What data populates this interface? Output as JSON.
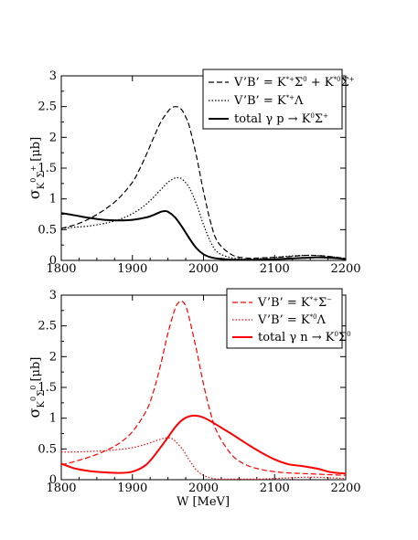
{
  "chart_data": [
    {
      "type": "line",
      "ylabel": {
        "main": "σ",
        "sub1": "K",
        "sup1": "0",
        "sub2": "Σ",
        "sup2": "+",
        "unit": " [μb]"
      },
      "xlabel": "",
      "xlim": [
        1800,
        2200
      ],
      "ylim": [
        0,
        3
      ],
      "xticks": [
        "1800",
        "1900",
        "2000",
        "2100",
        "2200"
      ],
      "yticks": [
        "0",
        "0.5",
        "1",
        "1.5",
        "2",
        "2.5",
        "3"
      ],
      "legend_position": "top-right",
      "legend_labels": {
        "s1": {
          "a": "V’B’ = K",
          "b": "*+",
          "c": "Σ",
          "d": "0",
          "e": " + K",
          "f": "*0",
          "g": "Σ",
          "h": "+"
        },
        "s2": {
          "a": "V’B’ = K",
          "b": "*+",
          "c": "Λ"
        },
        "s3": {
          "a": "total γ p → K",
          "b": "0",
          "c": "Σ",
          "d": "+"
        }
      },
      "color": "#000000",
      "series": [
        {
          "name": "V'B' = K*+Σ0 + K*0Σ+",
          "style": "dashed",
          "x": [
            1800,
            1820,
            1840,
            1860,
            1880,
            1900,
            1910,
            1920,
            1930,
            1940,
            1950,
            1955,
            1960,
            1965,
            1970,
            1975,
            1980,
            1990,
            2000,
            2010,
            2020,
            2040,
            2060,
            2080,
            2100,
            2120,
            2140,
            2160,
            2180,
            2200
          ],
          "y": [
            0.52,
            0.58,
            0.68,
            0.82,
            1.0,
            1.27,
            1.48,
            1.73,
            2.0,
            2.25,
            2.42,
            2.48,
            2.5,
            2.49,
            2.44,
            2.33,
            2.18,
            1.7,
            1.12,
            0.62,
            0.3,
            0.09,
            0.04,
            0.04,
            0.05,
            0.06,
            0.08,
            0.08,
            0.06,
            0.03
          ]
        },
        {
          "name": "V'B' = K*+Λ",
          "style": "dotted",
          "x": [
            1800,
            1820,
            1840,
            1860,
            1880,
            1900,
            1920,
            1940,
            1950,
            1960,
            1965,
            1970,
            1980,
            1990,
            2000,
            2010,
            2020,
            2040,
            2060,
            2080,
            2100,
            2120,
            2140,
            2160,
            2180,
            2200
          ],
          "y": [
            0.52,
            0.54,
            0.56,
            0.6,
            0.66,
            0.76,
            0.92,
            1.15,
            1.27,
            1.34,
            1.34,
            1.32,
            1.18,
            0.92,
            0.58,
            0.3,
            0.13,
            0.04,
            0.02,
            0.03,
            0.05,
            0.07,
            0.08,
            0.08,
            0.06,
            0.03
          ]
        },
        {
          "name": "total γ p → K0Σ+",
          "style": "solid",
          "x": [
            1800,
            1820,
            1840,
            1860,
            1880,
            1900,
            1920,
            1930,
            1940,
            1945,
            1950,
            1960,
            1970,
            1980,
            1990,
            2000,
            2010,
            2020,
            2030,
            2040,
            2060,
            2080,
            2100,
            2120,
            2140,
            2160,
            2180,
            2200
          ],
          "y": [
            0.77,
            0.73,
            0.69,
            0.66,
            0.65,
            0.66,
            0.7,
            0.74,
            0.79,
            0.8,
            0.79,
            0.7,
            0.54,
            0.36,
            0.2,
            0.1,
            0.05,
            0.03,
            0.02,
            0.01,
            0.01,
            0.01,
            0.02,
            0.03,
            0.04,
            0.05,
            0.04,
            0.02
          ]
        }
      ]
    },
    {
      "type": "line",
      "ylabel": {
        "main": "σ",
        "sub1": "K",
        "sup1": "0",
        "sub2": "Σ",
        "sup2": "0",
        "unit": " [μb]"
      },
      "xlabel": "W [MeV]",
      "xlim": [
        1800,
        2200
      ],
      "ylim": [
        0,
        3
      ],
      "xticks": [
        "1800",
        "1900",
        "2000",
        "2100",
        "2200"
      ],
      "yticks": [
        "0",
        "0.5",
        "1",
        "1.5",
        "2",
        "2.5",
        "3"
      ],
      "legend_position": "top-right",
      "legend_labels": {
        "s1": {
          "a": "V’B’ = K",
          "b": "*+",
          "c": "Σ",
          "d": "−"
        },
        "s2": {
          "a": "V’B’ = K",
          "b": "*0",
          "c": "Λ"
        },
        "s3": {
          "a": "total γ n → K",
          "b": "0",
          "c": "Σ",
          "d": "0"
        }
      },
      "color": "#ff0000",
      "series": [
        {
          "name": "V'B' = K*+Σ−",
          "style": "dashed",
          "x": [
            1800,
            1820,
            1840,
            1860,
            1880,
            1900,
            1920,
            1930,
            1940,
            1950,
            1960,
            1965,
            1970,
            1975,
            1980,
            1990,
            2000,
            2010,
            2020,
            2040,
            2060,
            2080,
            2100,
            2120,
            2140,
            2160,
            2180,
            2200
          ],
          "y": [
            0.24,
            0.3,
            0.37,
            0.46,
            0.58,
            0.78,
            1.13,
            1.45,
            1.88,
            2.38,
            2.78,
            2.88,
            2.9,
            2.82,
            2.62,
            2.12,
            1.55,
            1.08,
            0.75,
            0.4,
            0.24,
            0.17,
            0.13,
            0.11,
            0.1,
            0.09,
            0.08,
            0.07
          ]
        },
        {
          "name": "V'B' = K*0Λ",
          "style": "dotted",
          "x": [
            1800,
            1820,
            1840,
            1860,
            1880,
            1900,
            1920,
            1940,
            1950,
            1955,
            1960,
            1970,
            1980,
            1990,
            2000,
            2010,
            2020,
            2040,
            2060,
            2080,
            2100,
            2120,
            2140,
            2160,
            2180,
            2200
          ],
          "y": [
            0.45,
            0.45,
            0.46,
            0.47,
            0.49,
            0.52,
            0.58,
            0.66,
            0.68,
            0.67,
            0.63,
            0.5,
            0.32,
            0.16,
            0.07,
            0.03,
            0.01,
            0.01,
            0.01,
            0.01,
            0.02,
            0.03,
            0.04,
            0.04,
            0.03,
            0.02
          ]
        },
        {
          "name": "total γ n → K0Σ0",
          "style": "solid",
          "x": [
            1800,
            1820,
            1840,
            1860,
            1880,
            1900,
            1920,
            1940,
            1960,
            1970,
            1980,
            1990,
            2000,
            2010,
            2020,
            2040,
            2060,
            2080,
            2100,
            2120,
            2140,
            2160,
            2180,
            2200
          ],
          "y": [
            0.26,
            0.18,
            0.14,
            0.12,
            0.11,
            0.13,
            0.25,
            0.53,
            0.85,
            0.97,
            1.03,
            1.04,
            1.01,
            0.95,
            0.88,
            0.74,
            0.59,
            0.45,
            0.33,
            0.25,
            0.22,
            0.18,
            0.12,
            0.1
          ]
        }
      ]
    }
  ]
}
